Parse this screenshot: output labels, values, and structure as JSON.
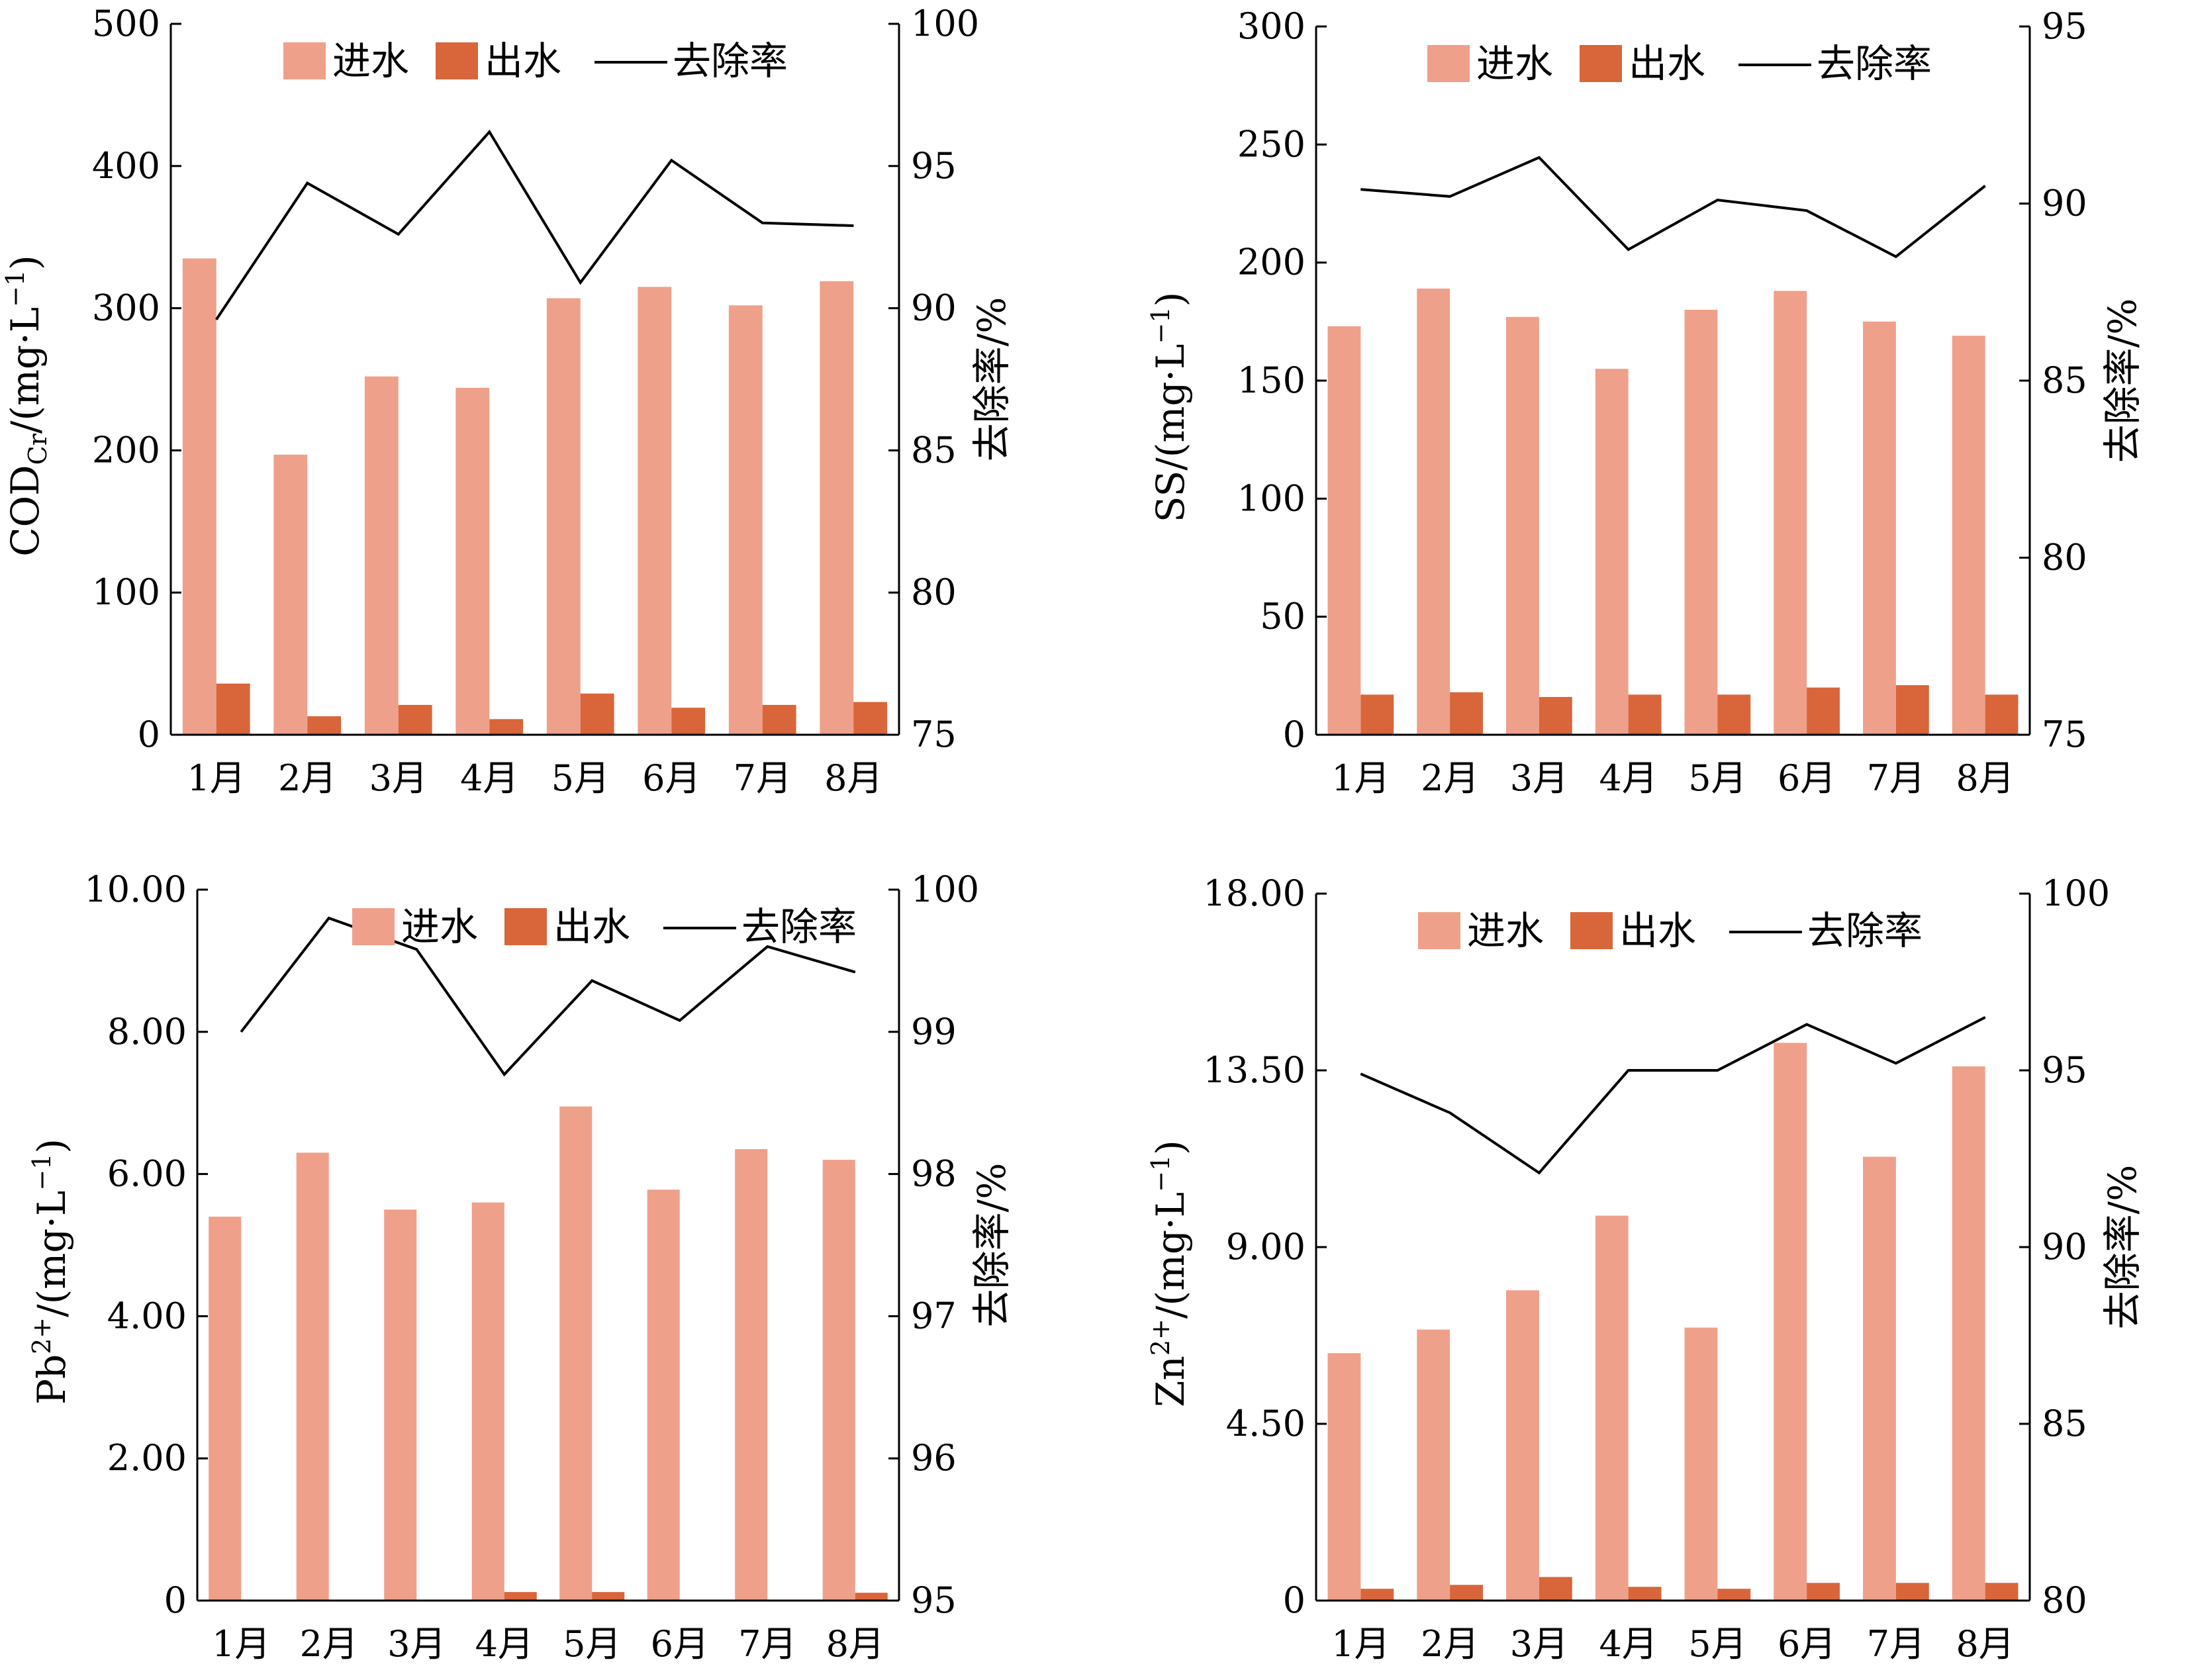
{
  "colors": {
    "inflow": "#EFA08A",
    "outflow": "#D9653A",
    "rate_line": "#000000"
  },
  "chart_data": [
    {
      "type": "bar",
      "categories": [
        "1月",
        "2月",
        "3月",
        "4月",
        "5月",
        "6月",
        "7月",
        "8月"
      ],
      "ylabel": "COD_Cr/(mg·L⁻¹)",
      "ylabel_main": "COD",
      "ylabel_sub": "Cr",
      "ylabel_rest": "/(mg·L",
      "ylabel_sup": "−1",
      "ylabel_end": ")",
      "y2label": "去除率/%",
      "ylim": [
        0,
        500
      ],
      "yticks": [
        "0",
        "100",
        "200",
        "300",
        "400",
        "500"
      ],
      "y2lim": [
        75,
        100
      ],
      "y2ticks": [
        "75",
        "80",
        "85",
        "90",
        "95",
        "100"
      ],
      "legend": {
        "inflow": "进水",
        "outflow": "出水",
        "rate": "去除率"
      },
      "series": [
        {
          "name": "进水",
          "values": [
            335,
            197,
            252,
            244,
            307,
            315,
            302,
            319
          ]
        },
        {
          "name": "出水",
          "values": [
            36,
            13,
            21,
            11,
            29,
            19,
            21,
            23
          ]
        },
        {
          "name": "去除率",
          "axis": "right",
          "values": [
            89.6,
            94.4,
            92.6,
            96.2,
            90.9,
            95.2,
            93.0,
            92.9
          ]
        }
      ]
    },
    {
      "type": "bar",
      "categories": [
        "1月",
        "2月",
        "3月",
        "4月",
        "5月",
        "6月",
        "7月",
        "8月"
      ],
      "ylabel": "SS/(mg·L⁻¹)",
      "ylabel_main": "SS",
      "ylabel_sub": "",
      "ylabel_rest": "/(mg·L",
      "ylabel_sup": "−1",
      "ylabel_end": ")",
      "y2label": "去除率/%",
      "ylim": [
        0,
        300
      ],
      "yticks": [
        "0",
        "50",
        "100",
        "150",
        "200",
        "250",
        "300"
      ],
      "y2lim": [
        75,
        95
      ],
      "y2ticks": [
        "75",
        "80",
        "85",
        "90",
        "95"
      ],
      "legend": {
        "inflow": "进水",
        "outflow": "出水",
        "rate": "去除率"
      },
      "series": [
        {
          "name": "进水",
          "values": [
            173,
            189,
            177,
            155,
            180,
            188,
            175,
            169
          ]
        },
        {
          "name": "出水",
          "values": [
            17,
            18,
            16,
            17,
            17,
            20,
            21,
            17
          ]
        },
        {
          "name": "去除率",
          "axis": "right",
          "values": [
            90.4,
            90.2,
            91.3,
            88.7,
            90.1,
            89.8,
            88.5,
            90.5
          ]
        }
      ]
    },
    {
      "type": "bar",
      "categories": [
        "1月",
        "2月",
        "3月",
        "4月",
        "5月",
        "6月",
        "7月",
        "8月"
      ],
      "ylabel": "Pb²⁺/(mg·L⁻¹)",
      "ylabel_main": "Pb",
      "ylabel_sub": "",
      "ylabel_supmain": "2+",
      "ylabel_rest": "/(mg·L",
      "ylabel_sup": "−1",
      "ylabel_end": ")",
      "y2label": "去除率/%",
      "ylim": [
        0,
        10
      ],
      "yticks": [
        "0",
        "2.00",
        "4.00",
        "6.00",
        "8.00",
        "10.00"
      ],
      "y2lim": [
        95,
        100
      ],
      "y2ticks": [
        "95",
        "96",
        "97",
        "98",
        "99",
        "100"
      ],
      "legend": {
        "inflow": "进水",
        "outflow": "出水",
        "rate": "去除率"
      },
      "series": [
        {
          "name": "进水",
          "values": [
            5.4,
            6.3,
            5.5,
            5.6,
            6.95,
            5.78,
            6.35,
            6.2
          ]
        },
        {
          "name": "出水",
          "values": [
            0,
            0,
            0,
            0.12,
            0.12,
            0,
            0,
            0.11
          ]
        },
        {
          "name": "去除率",
          "axis": "right",
          "values": [
            99.0,
            99.8,
            99.58,
            98.7,
            99.36,
            99.08,
            99.6,
            99.42
          ]
        }
      ]
    },
    {
      "type": "bar",
      "categories": [
        "1月",
        "2月",
        "3月",
        "4月",
        "5月",
        "6月",
        "7月",
        "8月"
      ],
      "ylabel": "Zn²⁺/(mg·L⁻¹)",
      "ylabel_main": "Zn",
      "ylabel_sub": "",
      "ylabel_supmain": "2+",
      "ylabel_rest": "/(mg·L",
      "ylabel_sup": "−1",
      "ylabel_end": ")",
      "y2label": "去除率/%",
      "ylim": [
        0,
        18
      ],
      "yticks": [
        "0",
        "4.50",
        "9.00",
        "13.50",
        "18.00"
      ],
      "y2lim": [
        80,
        100
      ],
      "y2ticks": [
        "80",
        "85",
        "90",
        "95",
        "100"
      ],
      "legend": {
        "inflow": "进水",
        "outflow": "出水",
        "rate": "去除率"
      },
      "series": [
        {
          "name": "进水",
          "values": [
            6.3,
            6.9,
            7.9,
            9.8,
            6.95,
            14.2,
            11.3,
            13.6
          ]
        },
        {
          "name": "出水",
          "values": [
            0.3,
            0.4,
            0.6,
            0.35,
            0.3,
            0.45,
            0.45,
            0.45
          ]
        },
        {
          "name": "去除率",
          "axis": "right",
          "values": [
            94.9,
            93.8,
            92.1,
            95.0,
            95.0,
            96.3,
            95.2,
            96.5
          ]
        }
      ]
    }
  ]
}
